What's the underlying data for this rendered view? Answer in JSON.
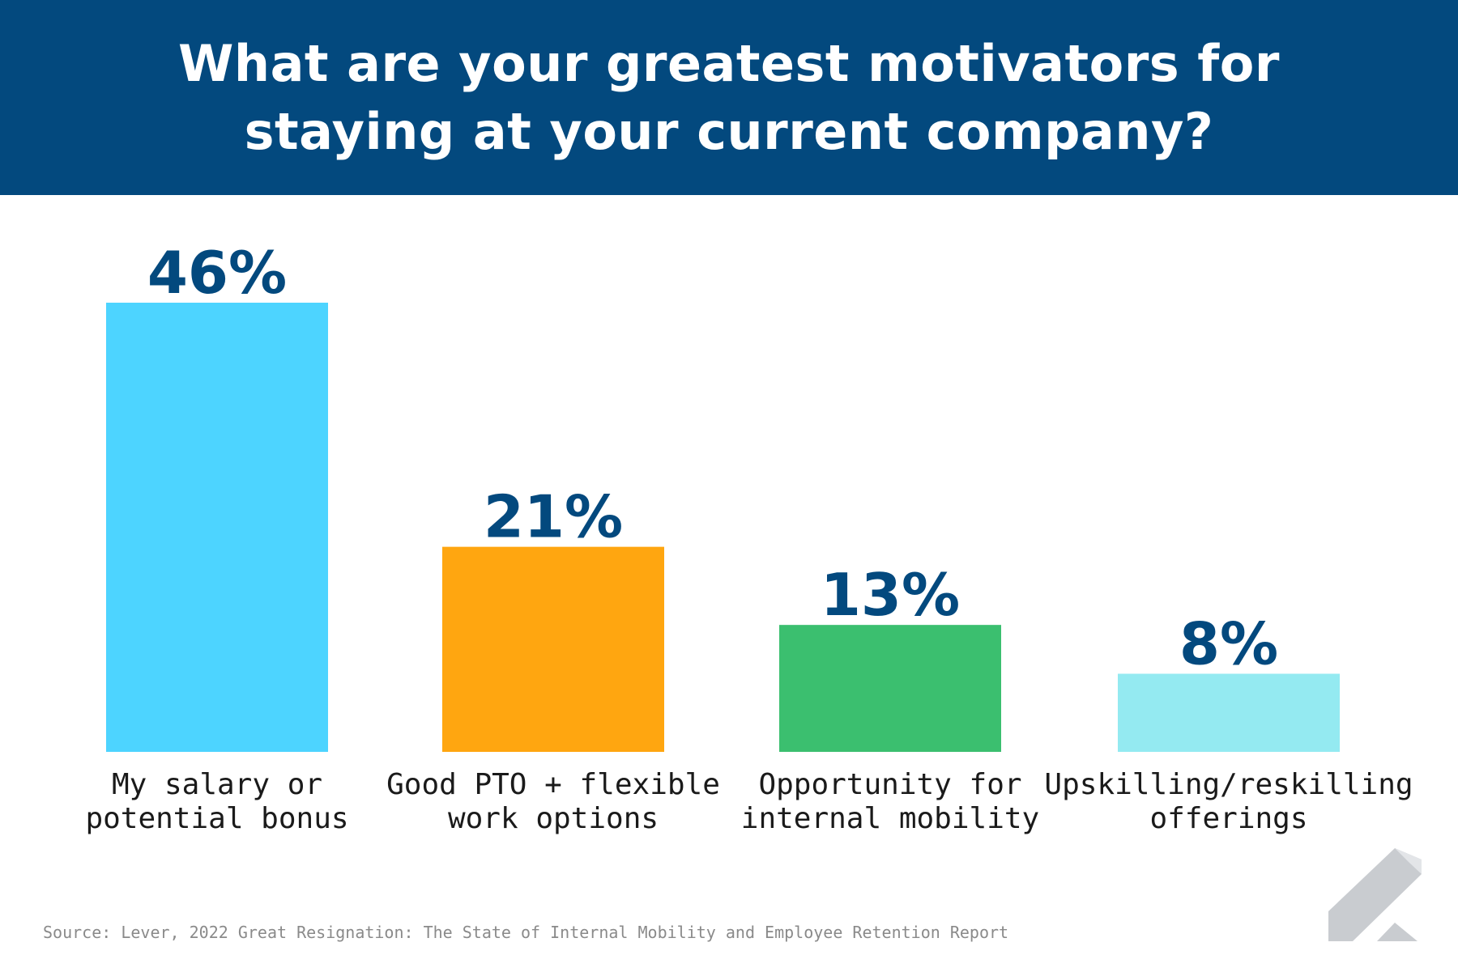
{
  "header": {
    "title": "What are your greatest motivators for staying at your current company?"
  },
  "chart_data": {
    "type": "bar",
    "categories": [
      [
        "My salary or",
        "potential bonus"
      ],
      [
        "Good PTO + flexible",
        "work options"
      ],
      [
        "Opportunity for",
        "internal mobility"
      ],
      [
        "Upskilling/reskilling",
        "offerings"
      ]
    ],
    "values": [
      46,
      21,
      13,
      8
    ],
    "value_labels": [
      "46%",
      "21%",
      "13%",
      "8%"
    ],
    "colors": [
      "#4dd4ff",
      "#ffa610",
      "#3bbf6f",
      "#94eaf1"
    ],
    "label_color": "#03497e",
    "ylim": [
      0,
      46
    ],
    "grid": false
  },
  "footer": {
    "source": "Source: Lever, 2022 Great Resignation: The State of Internal Mobility and Employee Retention Report"
  },
  "logo": {
    "icon": "lever-logo-icon"
  }
}
